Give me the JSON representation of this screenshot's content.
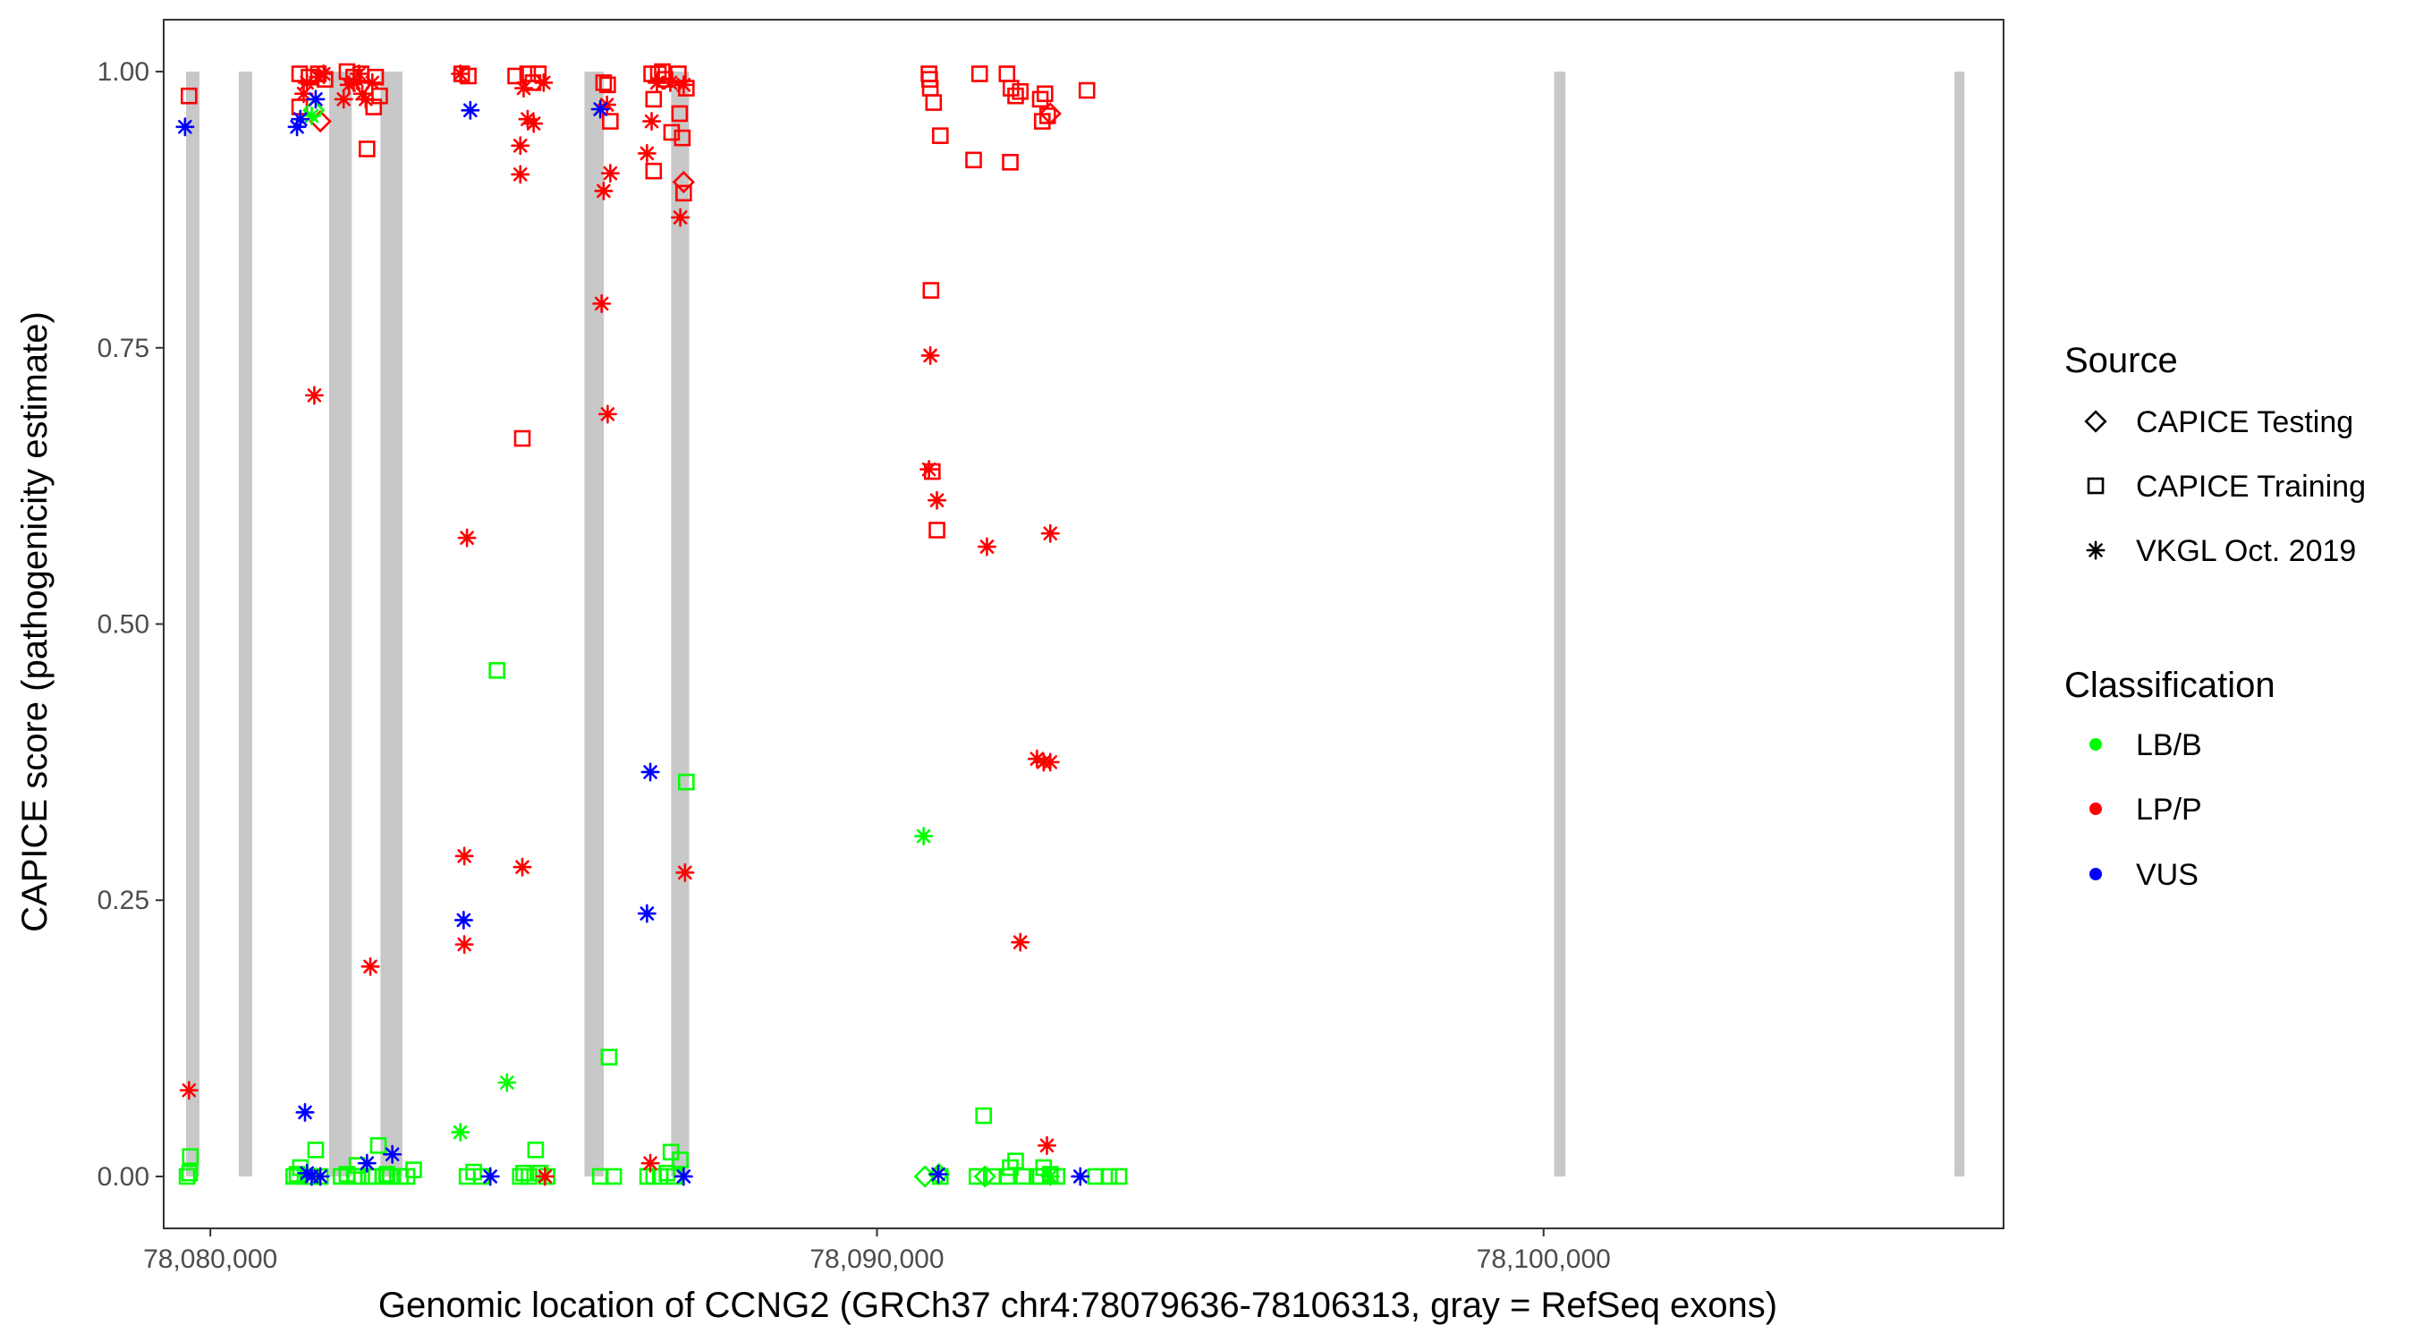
{
  "chart_data": {
    "type": "scatter",
    "title": "",
    "xlabel": "Genomic location of CCNG2 (GRCh37 chr4:78079636-78106313, gray = RefSeq exons)",
    "ylabel": "CAPICE score (pathogenicity estimate)",
    "xlim": [
      78079300,
      78106900
    ],
    "ylim": [
      -0.047,
      1.047
    ],
    "x_ticks": [
      78080000,
      78090000,
      78100000
    ],
    "x_tick_labels": [
      "78,080,000",
      "78,090,000",
      "78,100,000"
    ],
    "y_ticks": [
      0.0,
      0.25,
      0.5,
      0.75,
      1.0
    ],
    "y_tick_labels": [
      "0.00",
      "0.25",
      "0.50",
      "0.75",
      "1.00"
    ],
    "grid": false,
    "exons": [
      [
        78079636,
        78079836
      ],
      [
        78080426,
        78080626
      ],
      [
        78081782,
        78082122
      ],
      [
        78082552,
        78082882
      ],
      [
        78085612,
        78085902
      ],
      [
        78086912,
        78087182
      ],
      [
        78100158,
        78100328
      ],
      [
        78106163,
        78106313
      ]
    ],
    "legend": {
      "placement": "right",
      "source_title": "Source",
      "source_items": [
        {
          "label": "CAPICE Testing",
          "shape": "diamond"
        },
        {
          "label": "CAPICE Training",
          "shape": "square"
        },
        {
          "label": "VKGL Oct. 2019",
          "shape": "asterisk"
        }
      ],
      "class_title": "Classification",
      "class_items": [
        {
          "label": "LB/B",
          "color": "#00ff00"
        },
        {
          "label": "LP/P",
          "color": "#ff0000"
        },
        {
          "label": "VUS",
          "color": "#0000ff"
        }
      ]
    },
    "series": [
      {
        "source": "CAPICE Training",
        "classification": "LP/P",
        "points": [
          [
            78079680,
            0.978
          ],
          [
            78081340,
            0.998
          ],
          [
            78081340,
            0.968
          ],
          [
            78081480,
            0.995
          ],
          [
            78081620,
            0.998
          ],
          [
            78081720,
            0.993
          ],
          [
            78082050,
            1.0
          ],
          [
            78082150,
            0.995
          ],
          [
            78082260,
            0.998
          ],
          [
            78082350,
            0.93
          ],
          [
            78082450,
            0.968
          ],
          [
            78082480,
            0.995
          ],
          [
            78082540,
            0.978
          ],
          [
            78083770,
            0.998
          ],
          [
            78083870,
            0.996
          ],
          [
            78084580,
            0.996
          ],
          [
            78084680,
            0.668
          ],
          [
            78084760,
            0.998
          ],
          [
            78084840,
            0.99
          ],
          [
            78084920,
            0.998
          ],
          [
            78085900,
            0.99
          ],
          [
            78085960,
            0.988
          ],
          [
            78086000,
            0.955
          ],
          [
            78086620,
            0.998
          ],
          [
            78086650,
            0.975
          ],
          [
            78086650,
            0.91
          ],
          [
            78086720,
            0.998
          ],
          [
            78086780,
            1.0
          ],
          [
            78086820,
            0.993
          ],
          [
            78086920,
            0.945
          ],
          [
            78087020,
            0.998
          ],
          [
            78087040,
            0.962
          ],
          [
            78087080,
            0.94
          ],
          [
            78087100,
            0.89
          ],
          [
            78087140,
            0.985
          ],
          [
            78090780,
            0.998
          ],
          [
            78090790,
            0.993
          ],
          [
            78090800,
            0.985
          ],
          [
            78090810,
            0.802
          ],
          [
            78090830,
            0.638
          ],
          [
            78090850,
            0.972
          ],
          [
            78090900,
            0.585
          ],
          [
            78090950,
            0.942
          ],
          [
            78091450,
            0.92
          ],
          [
            78091540,
            0.998
          ],
          [
            78091950,
            0.998
          ],
          [
            78092000,
            0.918
          ],
          [
            78092010,
            0.985
          ],
          [
            78092080,
            0.978
          ],
          [
            78092150,
            0.982
          ],
          [
            78092450,
            0.975
          ],
          [
            78092480,
            0.955
          ],
          [
            78092520,
            0.98
          ],
          [
            78092560,
            0.96
          ],
          [
            78093150,
            0.983
          ]
        ]
      },
      {
        "source": "CAPICE Training",
        "classification": "LB/B",
        "points": [
          [
            78079650,
            0.0
          ],
          [
            78079690,
            0.003
          ],
          [
            78079700,
            0.018
          ],
          [
            78081250,
            0.0
          ],
          [
            78081300,
            0.002
          ],
          [
            78081350,
            0.008
          ],
          [
            78081420,
            0.0
          ],
          [
            78081480,
            0.0
          ],
          [
            78081530,
            0.0
          ],
          [
            78081580,
            0.024
          ],
          [
            78081650,
            0.0
          ],
          [
            78081960,
            0.0
          ],
          [
            78082050,
            0.002
          ],
          [
            78082160,
            0.0
          ],
          [
            78082200,
            0.01
          ],
          [
            78082270,
            0.0
          ],
          [
            78082370,
            0.0
          ],
          [
            78082430,
            0.0
          ],
          [
            78082520,
            0.028
          ],
          [
            78082590,
            0.0
          ],
          [
            78082650,
            0.002
          ],
          [
            78082700,
            0.0
          ],
          [
            78082850,
            0.0
          ],
          [
            78082950,
            0.0
          ],
          [
            78083050,
            0.006
          ],
          [
            78083850,
            0.0
          ],
          [
            78083950,
            0.004
          ],
          [
            78084070,
            0.0
          ],
          [
            78084300,
            0.458
          ],
          [
            78084650,
            0.0
          ],
          [
            78084700,
            0.003
          ],
          [
            78084780,
            0.0
          ],
          [
            78084880,
            0.024
          ],
          [
            78084950,
            0.003
          ],
          [
            78085050,
            0.0
          ],
          [
            78085850,
            0.0
          ],
          [
            78085980,
            0.108
          ],
          [
            78086050,
            0.0
          ],
          [
            78086560,
            0.0
          ],
          [
            78086650,
            0.0
          ],
          [
            78086750,
            0.0
          ],
          [
            78086850,
            0.003
          ],
          [
            78086910,
            0.022
          ],
          [
            78086960,
            0.0
          ],
          [
            78087050,
            0.015
          ],
          [
            78087140,
            0.357
          ],
          [
            78090950,
            0.0
          ],
          [
            78091500,
            0.0
          ],
          [
            78091600,
            0.055
          ],
          [
            78091750,
            0.0
          ],
          [
            78091950,
            0.0
          ],
          [
            78092000,
            0.008
          ],
          [
            78092080,
            0.014
          ],
          [
            78092200,
            0.0
          ],
          [
            78092400,
            0.0
          ],
          [
            78092450,
            0.0
          ],
          [
            78092500,
            0.008
          ],
          [
            78092600,
            0.002
          ],
          [
            78092700,
            0.0
          ],
          [
            78093280,
            0.0
          ],
          [
            78093480,
            0.0
          ],
          [
            78093630,
            0.0
          ]
        ]
      },
      {
        "source": "CAPICE Testing",
        "classification": "LP/P",
        "points": [
          [
            78081650,
            0.955
          ],
          [
            78087100,
            0.9
          ],
          [
            78092600,
            0.962
          ]
        ]
      },
      {
        "source": "CAPICE Testing",
        "classification": "LB/B",
        "points": [
          [
            78081550,
            0.965
          ],
          [
            78090720,
            0.0
          ],
          [
            78090930,
            0.002
          ],
          [
            78091620,
            0.0
          ]
        ]
      },
      {
        "source": "VKGL Oct. 2019",
        "classification": "LP/P",
        "points": [
          [
            78079680,
            0.078
          ],
          [
            78081400,
            0.98
          ],
          [
            78081450,
            0.99
          ],
          [
            78081560,
            0.707
          ],
          [
            78081620,
            0.995
          ],
          [
            78081700,
            0.998
          ],
          [
            78082000,
            0.975
          ],
          [
            78082080,
            0.988
          ],
          [
            78082150,
            0.99
          ],
          [
            78082230,
            0.998
          ],
          [
            78082280,
            0.98
          ],
          [
            78082330,
            0.975
          ],
          [
            78082400,
            0.19
          ],
          [
            78082430,
            0.99
          ],
          [
            78083750,
            0.998
          ],
          [
            78083810,
            0.21
          ],
          [
            78083810,
            0.29
          ],
          [
            78083850,
            0.578
          ],
          [
            78084650,
            0.933
          ],
          [
            78084650,
            0.907
          ],
          [
            78084680,
            0.28
          ],
          [
            78084700,
            0.985
          ],
          [
            78084760,
            0.957
          ],
          [
            78084850,
            0.953
          ],
          [
            78085000,
            0.99
          ],
          [
            78085020,
            0.0
          ],
          [
            78085870,
            0.79
          ],
          [
            78085900,
            0.892
          ],
          [
            78085950,
            0.97
          ],
          [
            78085960,
            0.69
          ],
          [
            78086000,
            0.908
          ],
          [
            78086550,
            0.926
          ],
          [
            78086600,
            0.012
          ],
          [
            78086620,
            0.955
          ],
          [
            78086700,
            0.99
          ],
          [
            78086900,
            0.99
          ],
          [
            78087050,
            0.868
          ],
          [
            78087100,
            0.988
          ],
          [
            78087120,
            0.275
          ],
          [
            78090780,
            0.64
          ],
          [
            78090800,
            0.743
          ],
          [
            78090900,
            0.612
          ],
          [
            78091650,
            0.57
          ],
          [
            78092150,
            0.212
          ],
          [
            78092400,
            0.378
          ],
          [
            78092500,
            0.375
          ],
          [
            78092550,
            0.028
          ],
          [
            78092600,
            0.582
          ],
          [
            78092600,
            0.375
          ]
        ]
      },
      {
        "source": "VKGL Oct. 2019",
        "classification": "LB/B",
        "points": [
          [
            78081520,
            0.96
          ],
          [
            78083750,
            0.04
          ],
          [
            78084450,
            0.085
          ],
          [
            78090700,
            0.308
          ],
          [
            78092600,
            0.0
          ]
        ]
      },
      {
        "source": "VKGL Oct. 2019",
        "classification": "VUS",
        "points": [
          [
            78079620,
            0.95
          ],
          [
            78081300,
            0.95
          ],
          [
            78081350,
            0.957
          ],
          [
            78081420,
            0.058
          ],
          [
            78081450,
            0.003
          ],
          [
            78081520,
            0.0
          ],
          [
            78081580,
            0.975
          ],
          [
            78081650,
            0.0
          ],
          [
            78082350,
            0.012
          ],
          [
            78082730,
            0.02
          ],
          [
            78083800,
            0.232
          ],
          [
            78083900,
            0.965
          ],
          [
            78084200,
            0.0
          ],
          [
            78085850,
            0.966
          ],
          [
            78086550,
            0.238
          ],
          [
            78086600,
            0.366
          ],
          [
            78087100,
            0.0
          ],
          [
            78090920,
            0.002
          ],
          [
            78093050,
            0.0
          ]
        ]
      }
    ]
  }
}
